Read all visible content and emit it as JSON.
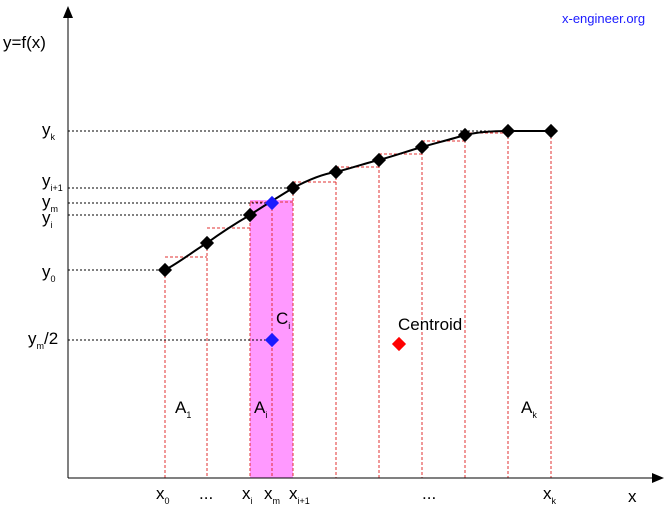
{
  "site_label": "x-engineer.org",
  "colors": {
    "axis": "#000000",
    "curve": "#000000",
    "guide_red": "#e03030",
    "guide_black": "#000000",
    "highlight_fill": "#ff99ff",
    "point_blue": "#1a1aff",
    "centroid_red": "#ff0000",
    "site_label": "#1a1aff"
  },
  "axes": {
    "y_title": "y=f(x)",
    "x_title": "x"
  },
  "y_labels": {
    "yk": {
      "base": "y",
      "sub": "k"
    },
    "yi1": {
      "base": "y",
      "sub": "i+1"
    },
    "ym": {
      "base": "y",
      "sub": "m"
    },
    "yi": {
      "base": "y",
      "sub": "i"
    },
    "y0": {
      "base": "y",
      "sub": "0"
    },
    "ym2": {
      "base": "y",
      "sub": "m",
      "suffix": "/2"
    }
  },
  "x_labels": {
    "x0": {
      "base": "x",
      "sub": "0"
    },
    "dots1": "...",
    "xi": {
      "base": "x",
      "sub": "i"
    },
    "xm": {
      "base": "x",
      "sub": "m"
    },
    "xi1": {
      "base": "x",
      "sub": "i+1"
    },
    "dots2": "...",
    "xk": {
      "base": "x",
      "sub": "k"
    }
  },
  "areas": {
    "a1": {
      "base": "A",
      "sub": "1"
    },
    "ai": {
      "base": "A",
      "sub": "i"
    },
    "ak": {
      "base": "A",
      "sub": "k"
    }
  },
  "point_labels": {
    "ci": {
      "base": "C",
      "sub": "i"
    },
    "centroid": "Centroid"
  }
}
